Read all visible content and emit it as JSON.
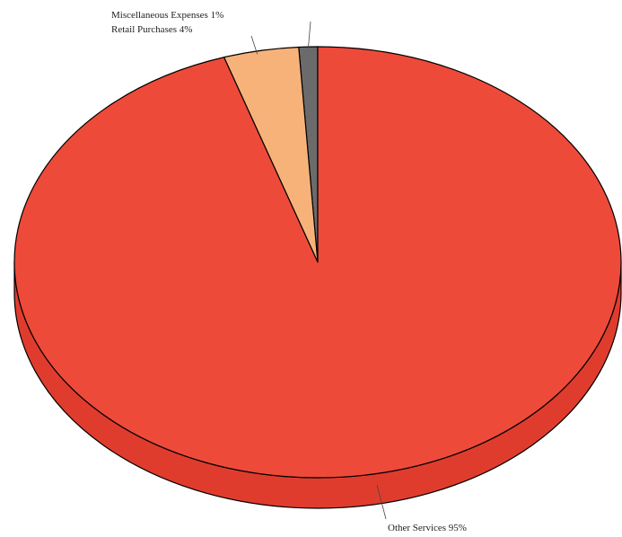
{
  "chart_data": {
    "type": "pie",
    "style": "3d-tilted",
    "slices": [
      {
        "label": "Miscellaneous Expenses 1%",
        "value": 1,
        "color": "#6b6b6b"
      },
      {
        "label": "Retail Purchases 4%",
        "value": 4,
        "color": "#f7b27a"
      },
      {
        "label": "Other Services 95%",
        "value": 95,
        "color": "#ee4a3a"
      }
    ],
    "side_color": "#e03c2e",
    "outline_color": "#000000",
    "title": "",
    "legend": "none"
  }
}
